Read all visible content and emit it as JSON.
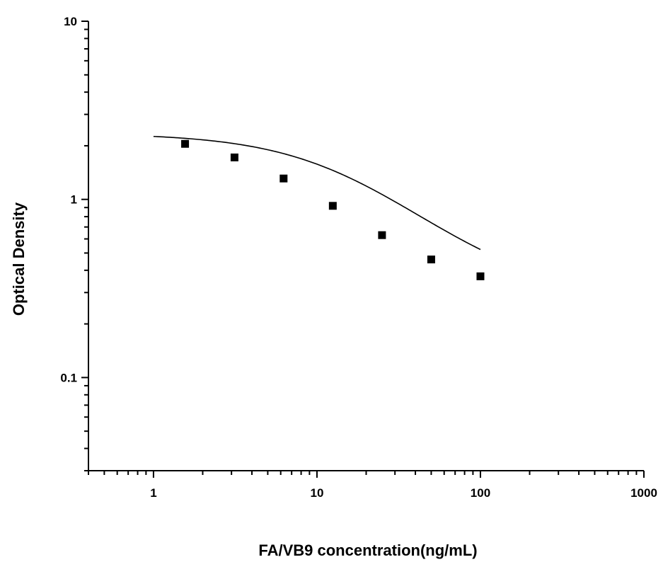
{
  "chart_data": {
    "type": "scatter",
    "xlabel": "FA/VB9 concentration(ng/mL)",
    "ylabel": "Optical Density",
    "xscale": "log",
    "yscale": "log",
    "xlim": [
      0.4,
      1000
    ],
    "ylim": [
      0.03,
      10
    ],
    "x_ticks": [
      1,
      10,
      100,
      1000
    ],
    "x_tick_labels": [
      "1",
      "10",
      "100",
      "1000"
    ],
    "y_ticks": [
      0.1,
      1,
      10
    ],
    "y_tick_labels": [
      "0.1",
      "1",
      "10"
    ],
    "grid": false,
    "series": [
      {
        "marker": "square",
        "color": "#000000",
        "points": [
          {
            "x": 1.56,
            "y": 2.05
          },
          {
            "x": 3.13,
            "y": 1.72
          },
          {
            "x": 6.25,
            "y": 1.31
          },
          {
            "x": 12.5,
            "y": 0.92
          },
          {
            "x": 25,
            "y": 0.63
          },
          {
            "x": 50,
            "y": 0.46
          },
          {
            "x": 100,
            "y": 0.37
          }
        ]
      }
    ],
    "fit_curve": {
      "type": "4pl",
      "color": "#000000",
      "x_range": [
        1,
        100
      ],
      "A": 2.35,
      "B": 1.1,
      "C": 16,
      "D": 0.28
    }
  }
}
